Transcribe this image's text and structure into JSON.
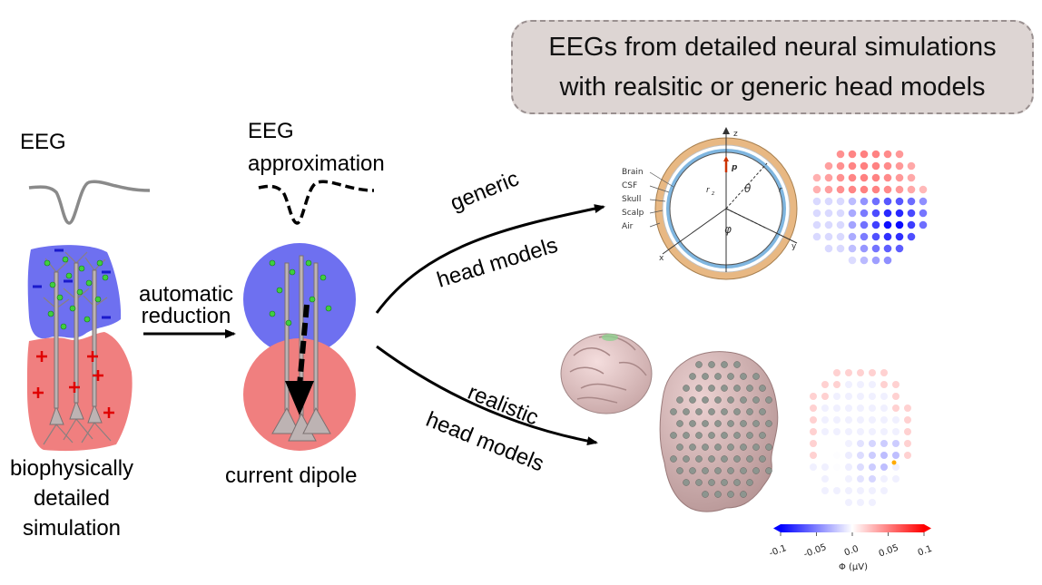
{
  "title": {
    "line1": "EEGs from detailed neural simulations",
    "line2": "with realsitic or generic head models"
  },
  "left_panel": {
    "eeg_label": "EEG",
    "caption_line1": "biophysically",
    "caption_line2": "detailed",
    "caption_line3": "simulation"
  },
  "middle_panel": {
    "eeg_label_line1": "EEG",
    "eeg_label_line2": "approximation",
    "caption": "current dipole"
  },
  "arrow_reduction": {
    "line1": "automatic",
    "line2": "reduction"
  },
  "branch_generic": {
    "line1": "generic",
    "line2": "head models"
  },
  "branch_realistic": {
    "line1": "realistic",
    "line2": "head models"
  },
  "sphere_model": {
    "layers": [
      "Brain",
      "CSF",
      "Skull",
      "Scalp",
      "Air"
    ],
    "axis_z": "z",
    "axis_y": "y",
    "axis_x": "x",
    "dipole": "p",
    "theta": "θ",
    "phi": "φ",
    "radius": "r",
    "radius_z": "r",
    "radius_z_sub": "z"
  },
  "colorbar": {
    "ticks": [
      "-0.1",
      "-0.05",
      "0.0",
      "0.05",
      "0.1"
    ],
    "label": "Φ (μV)"
  },
  "colors": {
    "negative": "#6e70f0",
    "positive": "#f07f7f",
    "neuron": "#bdb3b3",
    "synapse": "#3fcf3f",
    "scalp": "#e8b883",
    "csf": "#7fb6e0",
    "head": "#e0c3c3"
  }
}
